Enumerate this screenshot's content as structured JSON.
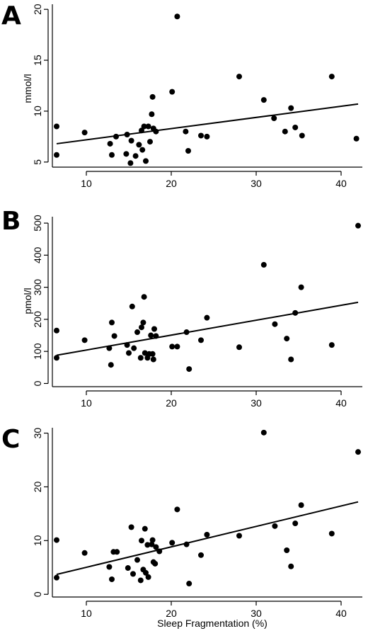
{
  "chart_data": [
    {
      "type": "scatter",
      "panel": "A",
      "ylabel": "mmol/l",
      "xlabel": "",
      "xlim": [
        6,
        42.5
      ],
      "ylim": [
        4.5,
        20.5
      ],
      "xticks": [
        "10",
        "20",
        "30",
        "40"
      ],
      "yticks": [
        "5",
        "10",
        "15",
        "20"
      ],
      "regression": {
        "x": [
          6.5,
          42
        ],
        "y": [
          6.8,
          10.7
        ]
      },
      "points": [
        {
          "x": 6.5,
          "y": 8.5
        },
        {
          "x": 6.5,
          "y": 5.7
        },
        {
          "x": 9.8,
          "y": 7.9
        },
        {
          "x": 12.8,
          "y": 6.8
        },
        {
          "x": 13.0,
          "y": 5.7
        },
        {
          "x": 13.5,
          "y": 7.5
        },
        {
          "x": 14.7,
          "y": 5.8
        },
        {
          "x": 14.8,
          "y": 7.7
        },
        {
          "x": 15.2,
          "y": 4.9
        },
        {
          "x": 15.3,
          "y": 7.1
        },
        {
          "x": 15.8,
          "y": 5.6
        },
        {
          "x": 16.2,
          "y": 6.7
        },
        {
          "x": 16.5,
          "y": 8.1
        },
        {
          "x": 16.6,
          "y": 6.2
        },
        {
          "x": 16.8,
          "y": 8.5
        },
        {
          "x": 17.0,
          "y": 5.1
        },
        {
          "x": 17.3,
          "y": 8.5
        },
        {
          "x": 17.5,
          "y": 7.0
        },
        {
          "x": 17.7,
          "y": 9.7
        },
        {
          "x": 17.8,
          "y": 11.4
        },
        {
          "x": 17.9,
          "y": 8.3
        },
        {
          "x": 18.2,
          "y": 8.0
        },
        {
          "x": 20.1,
          "y": 11.9
        },
        {
          "x": 20.7,
          "y": 19.3
        },
        {
          "x": 21.7,
          "y": 8.0
        },
        {
          "x": 22.0,
          "y": 6.1
        },
        {
          "x": 23.5,
          "y": 7.6
        },
        {
          "x": 24.2,
          "y": 7.5
        },
        {
          "x": 28.0,
          "y": 13.4
        },
        {
          "x": 30.9,
          "y": 11.1
        },
        {
          "x": 32.1,
          "y": 9.3
        },
        {
          "x": 33.4,
          "y": 8.0
        },
        {
          "x": 34.1,
          "y": 10.3
        },
        {
          "x": 34.6,
          "y": 8.4
        },
        {
          "x": 35.4,
          "y": 7.6
        },
        {
          "x": 38.9,
          "y": 13.4
        },
        {
          "x": 41.8,
          "y": 7.3
        }
      ]
    },
    {
      "type": "scatter",
      "panel": "B",
      "ylabel": "pmol/l",
      "xlabel": "",
      "xlim": [
        6,
        42.5
      ],
      "ylim": [
        -10,
        520
      ],
      "xticks": [
        "10",
        "20",
        "30",
        "40"
      ],
      "yticks": [
        "0",
        "100",
        "200",
        "300",
        "400",
        "500"
      ],
      "regression": {
        "x": [
          6.5,
          42
        ],
        "y": [
          88,
          253
        ]
      },
      "points": [
        {
          "x": 6.5,
          "y": 165
        },
        {
          "x": 6.5,
          "y": 80
        },
        {
          "x": 9.8,
          "y": 135
        },
        {
          "x": 12.7,
          "y": 110
        },
        {
          "x": 12.9,
          "y": 58
        },
        {
          "x": 13.0,
          "y": 190
        },
        {
          "x": 13.3,
          "y": 148
        },
        {
          "x": 14.8,
          "y": 120
        },
        {
          "x": 15.0,
          "y": 95
        },
        {
          "x": 15.4,
          "y": 240
        },
        {
          "x": 15.6,
          "y": 110
        },
        {
          "x": 16.0,
          "y": 160
        },
        {
          "x": 16.4,
          "y": 80
        },
        {
          "x": 16.5,
          "y": 175
        },
        {
          "x": 16.7,
          "y": 190
        },
        {
          "x": 16.8,
          "y": 270
        },
        {
          "x": 16.9,
          "y": 95
        },
        {
          "x": 17.2,
          "y": 80
        },
        {
          "x": 17.4,
          "y": 92
        },
        {
          "x": 17.6,
          "y": 150
        },
        {
          "x": 17.8,
          "y": 92
        },
        {
          "x": 17.9,
          "y": 75
        },
        {
          "x": 18.0,
          "y": 170
        },
        {
          "x": 18.2,
          "y": 148
        },
        {
          "x": 20.1,
          "y": 115
        },
        {
          "x": 20.7,
          "y": 115
        },
        {
          "x": 21.8,
          "y": 160
        },
        {
          "x": 22.1,
          "y": 45
        },
        {
          "x": 23.5,
          "y": 135
        },
        {
          "x": 24.2,
          "y": 205
        },
        {
          "x": 28.0,
          "y": 113
        },
        {
          "x": 30.9,
          "y": 370
        },
        {
          "x": 32.2,
          "y": 185
        },
        {
          "x": 33.6,
          "y": 140
        },
        {
          "x": 34.1,
          "y": 75
        },
        {
          "x": 34.6,
          "y": 220
        },
        {
          "x": 35.3,
          "y": 300
        },
        {
          "x": 38.9,
          "y": 120
        },
        {
          "x": 42.0,
          "y": 492
        }
      ]
    },
    {
      "type": "scatter",
      "panel": "C",
      "ylabel": "",
      "xlabel": "Sleep Fragmentation (%)",
      "xlim": [
        6,
        42.5
      ],
      "ylim": [
        -0.5,
        31
      ],
      "xticks": [
        "10",
        "20",
        "30",
        "40"
      ],
      "yticks": [
        "0",
        "10",
        "20",
        "30"
      ],
      "regression": {
        "x": [
          6.5,
          42
        ],
        "y": [
          3.7,
          17.2
        ]
      },
      "points": [
        {
          "x": 6.5,
          "y": 10.1
        },
        {
          "x": 6.5,
          "y": 3.1
        },
        {
          "x": 9.8,
          "y": 7.7
        },
        {
          "x": 12.7,
          "y": 5.1
        },
        {
          "x": 13.0,
          "y": 2.8
        },
        {
          "x": 13.2,
          "y": 7.9
        },
        {
          "x": 13.6,
          "y": 7.9
        },
        {
          "x": 14.9,
          "y": 4.9
        },
        {
          "x": 15.3,
          "y": 12.5
        },
        {
          "x": 15.5,
          "y": 3.8
        },
        {
          "x": 16.0,
          "y": 6.4
        },
        {
          "x": 16.4,
          "y": 2.6
        },
        {
          "x": 16.5,
          "y": 10.0
        },
        {
          "x": 16.7,
          "y": 4.6
        },
        {
          "x": 16.9,
          "y": 12.2
        },
        {
          "x": 17.0,
          "y": 4.0
        },
        {
          "x": 17.2,
          "y": 9.2
        },
        {
          "x": 17.3,
          "y": 3.2
        },
        {
          "x": 17.7,
          "y": 9.3
        },
        {
          "x": 17.8,
          "y": 10.1
        },
        {
          "x": 17.9,
          "y": 6.0
        },
        {
          "x": 18.1,
          "y": 5.7
        },
        {
          "x": 18.2,
          "y": 8.8
        },
        {
          "x": 18.6,
          "y": 8.0
        },
        {
          "x": 20.1,
          "y": 9.6
        },
        {
          "x": 20.7,
          "y": 15.8
        },
        {
          "x": 21.8,
          "y": 9.3
        },
        {
          "x": 22.1,
          "y": 2.0
        },
        {
          "x": 23.5,
          "y": 7.3
        },
        {
          "x": 24.2,
          "y": 11.1
        },
        {
          "x": 28.0,
          "y": 10.9
        },
        {
          "x": 30.9,
          "y": 30.1
        },
        {
          "x": 32.2,
          "y": 12.7
        },
        {
          "x": 33.6,
          "y": 8.2
        },
        {
          "x": 34.1,
          "y": 5.2
        },
        {
          "x": 34.6,
          "y": 13.2
        },
        {
          "x": 35.3,
          "y": 16.6
        },
        {
          "x": 38.9,
          "y": 11.3
        },
        {
          "x": 42.0,
          "y": 26.5
        }
      ]
    }
  ]
}
